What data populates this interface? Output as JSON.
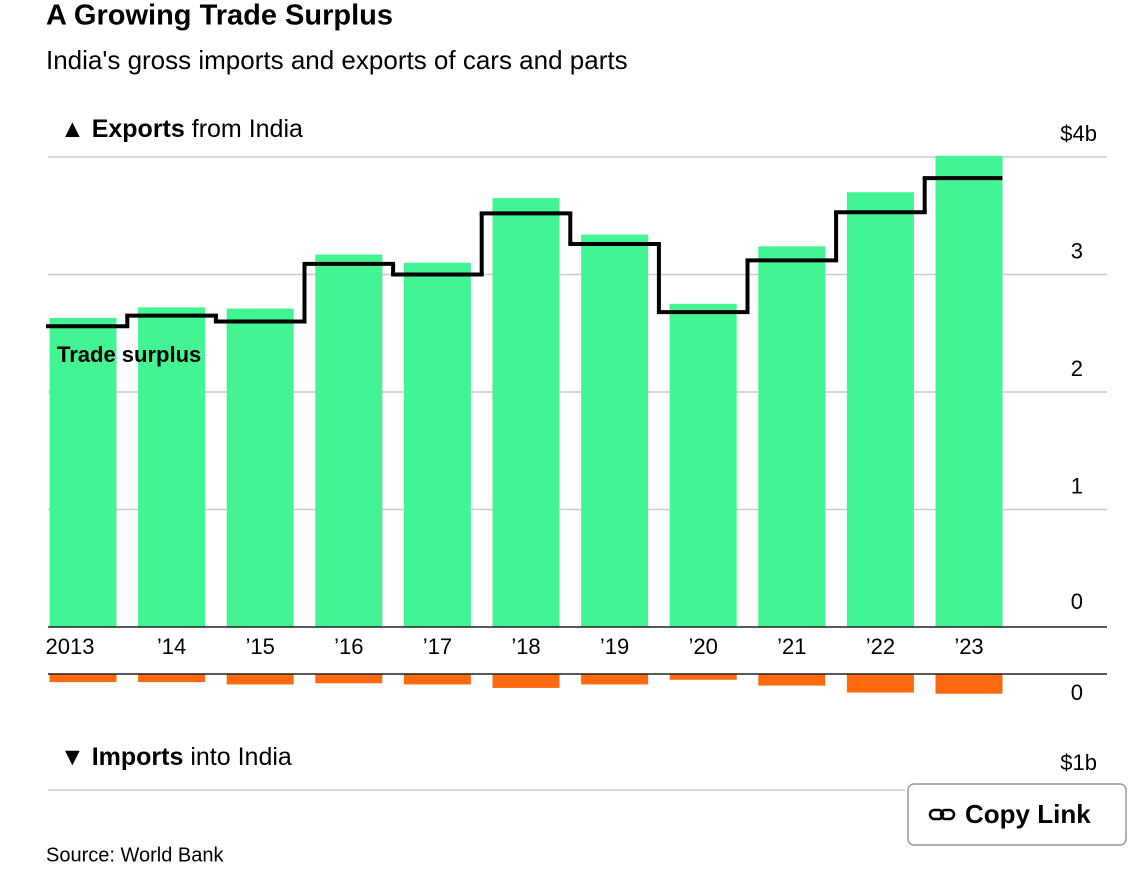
{
  "chart_data": [
    {
      "type": "bar",
      "title": "A Growing Trade Surplus",
      "subtitle": "India's gross imports and exports of cars and parts",
      "panel_marker": "▲",
      "panel_bold": "Exports",
      "panel_rest": "from India",
      "categories": [
        "2013",
        "’14",
        "’15",
        "’16",
        "’17",
        "’18",
        "’19",
        "’20",
        "’21",
        "’22",
        "’23"
      ],
      "series": [
        {
          "name": "Exports",
          "color": "#42f592",
          "values": [
            2.63,
            2.72,
            2.71,
            3.17,
            3.1,
            3.65,
            3.34,
            2.75,
            3.24,
            3.7,
            4.01
          ]
        },
        {
          "name": "Trade surplus",
          "type": "step",
          "color": "#000000",
          "values": [
            2.56,
            2.65,
            2.6,
            3.09,
            3.0,
            3.52,
            3.26,
            2.68,
            3.12,
            3.53,
            3.82
          ]
        }
      ],
      "ylim": [
        0,
        4
      ],
      "yticks": [
        0,
        1,
        2,
        3,
        {
          "value": 4,
          "label": "$4b"
        }
      ],
      "grid": true
    },
    {
      "type": "bar",
      "panel_marker": "▼",
      "panel_bold": "Imports",
      "panel_rest": "into India",
      "series": [
        {
          "name": "Imports",
          "color": "#ff6a10",
          "values": [
            0.07,
            0.07,
            0.09,
            0.08,
            0.09,
            0.12,
            0.09,
            0.05,
            0.1,
            0.16,
            0.17
          ]
        }
      ],
      "ylim": [
        0,
        1
      ],
      "yticks": [
        0,
        {
          "value": 1,
          "label": "$1b"
        }
      ],
      "inverted": true,
      "grid": true
    }
  ],
  "source": "Source: World Bank",
  "button": "Copy Link"
}
